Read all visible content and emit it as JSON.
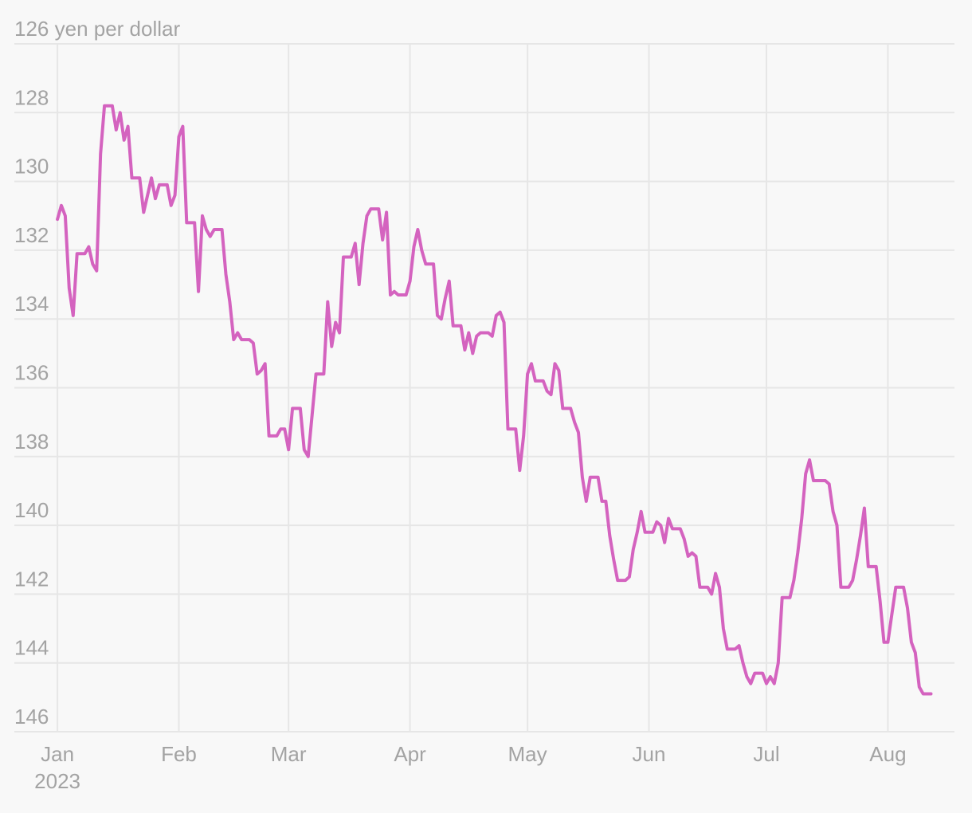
{
  "chart_data": {
    "type": "line",
    "title": "",
    "xlabel": "",
    "ylabel": "",
    "y_unit_label": "yen per dollar",
    "y_inverted": true,
    "ylim": [
      126,
      146
    ],
    "y_ticks": [
      126,
      128,
      130,
      132,
      134,
      136,
      138,
      140,
      142,
      144,
      146
    ],
    "y_tick_labels": [
      "126 yen per dollar",
      "128",
      "130",
      "132",
      "134",
      "136",
      "138",
      "140",
      "142",
      "144",
      "146"
    ],
    "x_ticks": [
      {
        "date": "2023-01-01",
        "label": "Jan",
        "sublabel": "2023"
      },
      {
        "date": "2023-02-01",
        "label": "Feb",
        "sublabel": ""
      },
      {
        "date": "2023-03-01",
        "label": "Mar",
        "sublabel": ""
      },
      {
        "date": "2023-04-01",
        "label": "Apr",
        "sublabel": ""
      },
      {
        "date": "2023-05-01",
        "label": "May",
        "sublabel": ""
      },
      {
        "date": "2023-06-01",
        "label": "Jun",
        "sublabel": ""
      },
      {
        "date": "2023-07-01",
        "label": "Jul",
        "sublabel": ""
      },
      {
        "date": "2023-08-01",
        "label": "Aug",
        "sublabel": ""
      }
    ],
    "xlim": [
      "2022-12-21",
      "2023-08-18"
    ],
    "grid": true,
    "legend": "none",
    "colors": {
      "line": "#d463bf",
      "grid": "#e6e6e6",
      "text": "#a3a3a3",
      "background": "#f8f8f8"
    },
    "series": [
      {
        "x": [
          "2023-01-01",
          "2023-01-02",
          "2023-01-03",
          "2023-01-04",
          "2023-01-05",
          "2023-01-06",
          "2023-01-07",
          "2023-01-08",
          "2023-01-09",
          "2023-01-10",
          "2023-01-11",
          "2023-01-12",
          "2023-01-13",
          "2023-01-14",
          "2023-01-15",
          "2023-01-16",
          "2023-01-17",
          "2023-01-18",
          "2023-01-19",
          "2023-01-20",
          "2023-01-21",
          "2023-01-22",
          "2023-01-23",
          "2023-01-24",
          "2023-01-25",
          "2023-01-26",
          "2023-01-27",
          "2023-01-28",
          "2023-01-29",
          "2023-01-30",
          "2023-01-31",
          "2023-02-01",
          "2023-02-02",
          "2023-02-03",
          "2023-02-04",
          "2023-02-05",
          "2023-02-06",
          "2023-02-07",
          "2023-02-08",
          "2023-02-09",
          "2023-02-10",
          "2023-02-11",
          "2023-02-12",
          "2023-02-13",
          "2023-02-14",
          "2023-02-15",
          "2023-02-16",
          "2023-02-17",
          "2023-02-18",
          "2023-02-19",
          "2023-02-20",
          "2023-02-21",
          "2023-02-22",
          "2023-02-23",
          "2023-02-24",
          "2023-02-25",
          "2023-02-26",
          "2023-02-27",
          "2023-02-28",
          "2023-03-01",
          "2023-03-02",
          "2023-03-03",
          "2023-03-04",
          "2023-03-05",
          "2023-03-06",
          "2023-03-07",
          "2023-03-08",
          "2023-03-09",
          "2023-03-10",
          "2023-03-11",
          "2023-03-12",
          "2023-03-13",
          "2023-03-14",
          "2023-03-15",
          "2023-03-16",
          "2023-03-17",
          "2023-03-18",
          "2023-03-19",
          "2023-03-20",
          "2023-03-21",
          "2023-03-22",
          "2023-03-23",
          "2023-03-24",
          "2023-03-25",
          "2023-03-26",
          "2023-03-27",
          "2023-03-28",
          "2023-03-29",
          "2023-03-30",
          "2023-03-31",
          "2023-04-01",
          "2023-04-02",
          "2023-04-03",
          "2023-04-04",
          "2023-04-05",
          "2023-04-06",
          "2023-04-07",
          "2023-04-08",
          "2023-04-09",
          "2023-04-10",
          "2023-04-11",
          "2023-04-12",
          "2023-04-13",
          "2023-04-14",
          "2023-04-15",
          "2023-04-16",
          "2023-04-17",
          "2023-04-18",
          "2023-04-19",
          "2023-04-20",
          "2023-04-21",
          "2023-04-22",
          "2023-04-23",
          "2023-04-24",
          "2023-04-25",
          "2023-04-26",
          "2023-04-27",
          "2023-04-28",
          "2023-04-29",
          "2023-04-30",
          "2023-05-01",
          "2023-05-02",
          "2023-05-03",
          "2023-05-04",
          "2023-05-05",
          "2023-05-06",
          "2023-05-07",
          "2023-05-08",
          "2023-05-09",
          "2023-05-10",
          "2023-05-11",
          "2023-05-12",
          "2023-05-13",
          "2023-05-14",
          "2023-05-15",
          "2023-05-16",
          "2023-05-17",
          "2023-05-18",
          "2023-05-19",
          "2023-05-20",
          "2023-05-21",
          "2023-05-22",
          "2023-05-23",
          "2023-05-24",
          "2023-05-25",
          "2023-05-26",
          "2023-05-27",
          "2023-05-28",
          "2023-05-29",
          "2023-05-30",
          "2023-05-31",
          "2023-06-01",
          "2023-06-02",
          "2023-06-03",
          "2023-06-04",
          "2023-06-05",
          "2023-06-06",
          "2023-06-07",
          "2023-06-08",
          "2023-06-09",
          "2023-06-10",
          "2023-06-11",
          "2023-06-12",
          "2023-06-13",
          "2023-06-14",
          "2023-06-15",
          "2023-06-16",
          "2023-06-17",
          "2023-06-18",
          "2023-06-19",
          "2023-06-20",
          "2023-06-21",
          "2023-06-22",
          "2023-06-23",
          "2023-06-24",
          "2023-06-25",
          "2023-06-26",
          "2023-06-27",
          "2023-06-28",
          "2023-06-29",
          "2023-06-30",
          "2023-07-01",
          "2023-07-02",
          "2023-07-03",
          "2023-07-04",
          "2023-07-05",
          "2023-07-06",
          "2023-07-07",
          "2023-07-08",
          "2023-07-09",
          "2023-07-10",
          "2023-07-11",
          "2023-07-12",
          "2023-07-13",
          "2023-07-14",
          "2023-07-15",
          "2023-07-16",
          "2023-07-17",
          "2023-07-18",
          "2023-07-19",
          "2023-07-20",
          "2023-07-21",
          "2023-07-22",
          "2023-07-23",
          "2023-07-24",
          "2023-07-25",
          "2023-07-26",
          "2023-07-27",
          "2023-07-28",
          "2023-07-29",
          "2023-07-30",
          "2023-07-31",
          "2023-08-01",
          "2023-08-02",
          "2023-08-03",
          "2023-08-04",
          "2023-08-05",
          "2023-08-06",
          "2023-08-07",
          "2023-08-08",
          "2023-08-09",
          "2023-08-10",
          "2023-08-11",
          "2023-08-12"
        ],
        "values": [
          131.1,
          130.7,
          131.0,
          133.1,
          133.9,
          132.1,
          132.1,
          132.1,
          131.9,
          132.4,
          132.6,
          129.2,
          127.8,
          127.8,
          127.8,
          128.5,
          128.0,
          128.8,
          128.4,
          129.9,
          129.9,
          129.9,
          130.9,
          130.4,
          129.9,
          130.5,
          130.1,
          130.1,
          130.1,
          130.7,
          130.4,
          128.7,
          128.4,
          131.2,
          131.2,
          131.2,
          133.2,
          131.0,
          131.4,
          131.6,
          131.4,
          131.4,
          131.4,
          132.7,
          133.5,
          134.6,
          134.4,
          134.6,
          134.6,
          134.6,
          134.7,
          135.6,
          135.5,
          135.3,
          137.4,
          137.4,
          137.4,
          137.2,
          137.2,
          137.8,
          136.6,
          136.6,
          136.6,
          137.8,
          138.0,
          136.8,
          135.6,
          135.6,
          135.6,
          133.5,
          134.8,
          134.1,
          134.4,
          132.2,
          132.2,
          132.2,
          131.8,
          133.0,
          131.8,
          131.0,
          130.8,
          130.8,
          130.8,
          131.7,
          130.9,
          133.3,
          133.2,
          133.3,
          133.3,
          133.3,
          132.9,
          131.9,
          131.4,
          132.0,
          132.4,
          132.4,
          132.4,
          133.9,
          134.0,
          133.4,
          132.9,
          134.2,
          134.2,
          134.2,
          134.9,
          134.4,
          135.0,
          134.5,
          134.4,
          134.4,
          134.4,
          134.5,
          133.9,
          133.8,
          134.1,
          137.2,
          137.2,
          137.2,
          138.4,
          137.4,
          135.6,
          135.3,
          135.8,
          135.8,
          135.8,
          136.1,
          136.2,
          135.3,
          135.5,
          136.6,
          136.6,
          136.6,
          137.0,
          137.3,
          138.6,
          139.3,
          138.6,
          138.6,
          138.6,
          139.3,
          139.3,
          140.3,
          141.0,
          141.6,
          141.6,
          141.6,
          141.5,
          140.7,
          140.2,
          139.6,
          140.2,
          140.2,
          140.2,
          139.9,
          140.0,
          140.5,
          139.8,
          140.1,
          140.1,
          140.1,
          140.4,
          140.9,
          140.8,
          140.9,
          141.8,
          141.8,
          141.8,
          142.0,
          141.4,
          141.8,
          143.0,
          143.6,
          143.6,
          143.6,
          143.5,
          144.0,
          144.4,
          144.6,
          144.3,
          144.3,
          144.3,
          144.6,
          144.4,
          144.6,
          144.0,
          142.1,
          142.1,
          142.1,
          141.6,
          140.8,
          139.8,
          138.5,
          138.1,
          138.7,
          138.7,
          138.7,
          138.7,
          138.8,
          139.6,
          140.0,
          141.8,
          141.8,
          141.8,
          141.6,
          141.0,
          140.3,
          139.5,
          141.2,
          141.2,
          141.2,
          142.2,
          143.4,
          143.4,
          142.6,
          141.8,
          141.8,
          141.8,
          142.4,
          143.4,
          143.7,
          144.7,
          144.9,
          144.9,
          144.9
        ]
      }
    ]
  }
}
